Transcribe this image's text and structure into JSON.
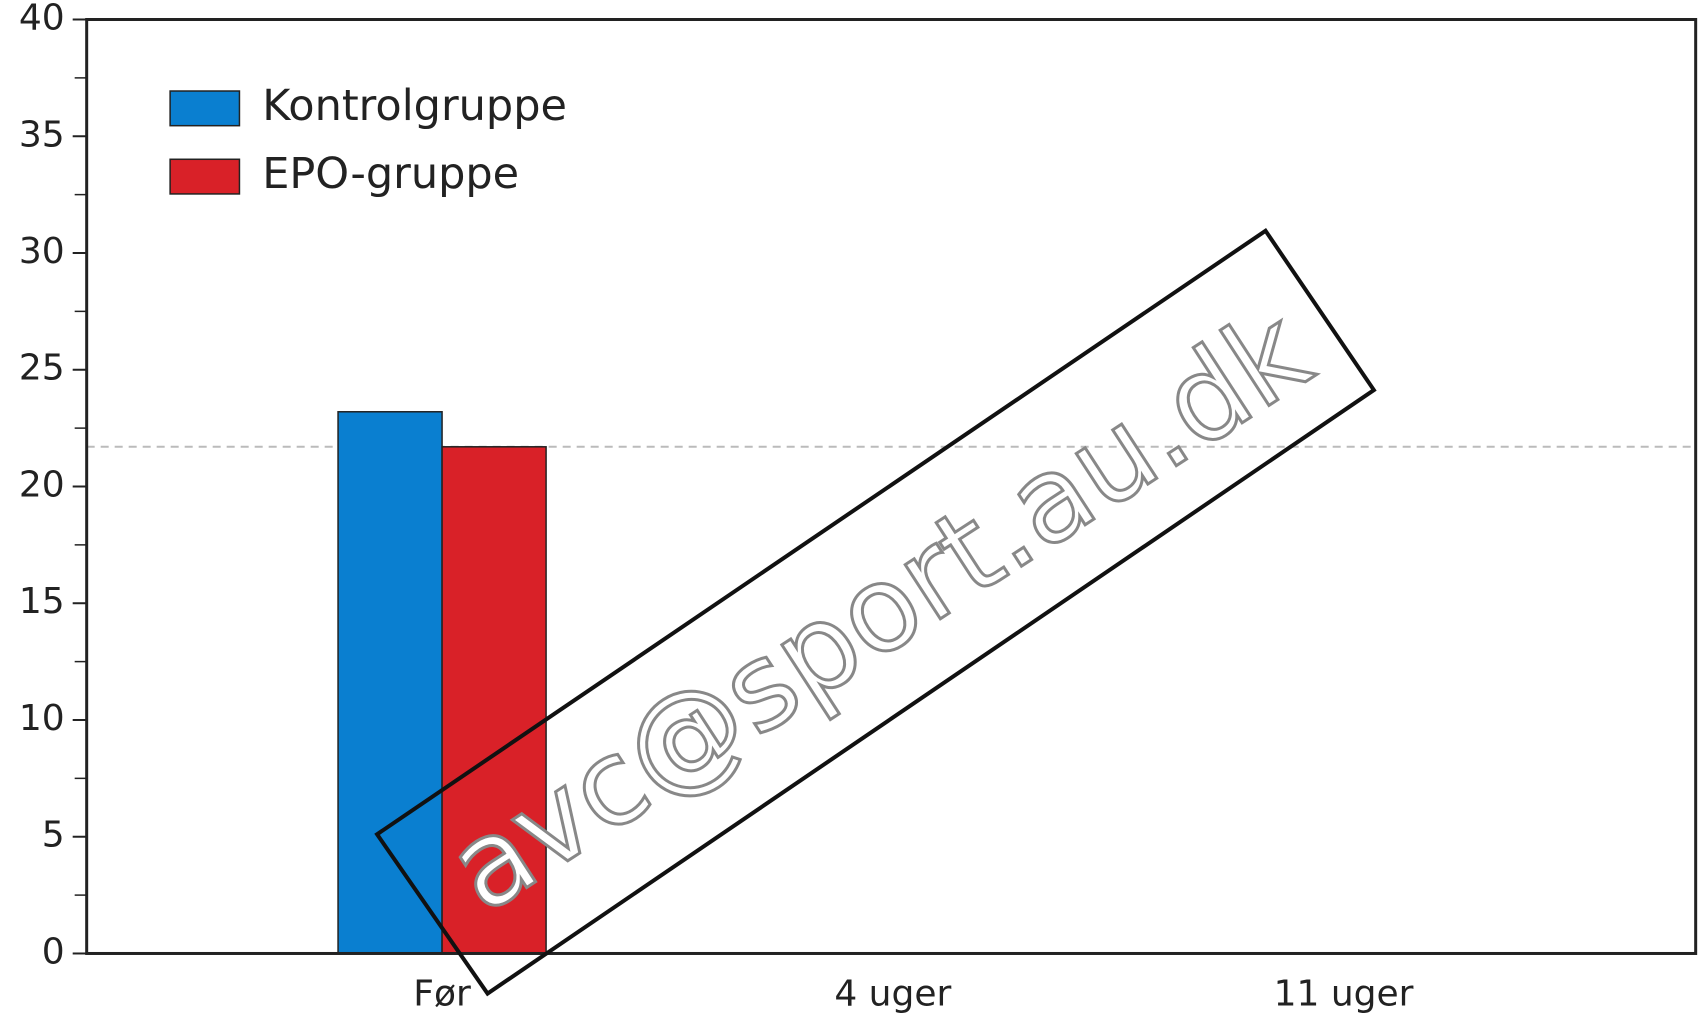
{
  "chart_data": {
    "type": "bar",
    "categories": [
      "Før",
      "4 uger",
      "11 uger"
    ],
    "series": [
      {
        "name": "Kontrolgruppe",
        "color": "#0a7fd0",
        "values": [
          23.2,
          0,
          0
        ]
      },
      {
        "name": "EPO-gruppe",
        "color": "#d92128",
        "values": [
          21.7,
          0,
          0
        ]
      }
    ],
    "ylim": [
      0,
      40
    ],
    "yticks": [
      0,
      5,
      10,
      15,
      20,
      25,
      30,
      35,
      40
    ],
    "yminorticks": [
      2.5,
      7.5,
      12.5,
      17.5,
      22.5,
      27.5,
      32.5,
      37.5
    ],
    "reference_line": 21.7,
    "legend": "upper left",
    "watermark": "avc@sport.au.dk"
  }
}
